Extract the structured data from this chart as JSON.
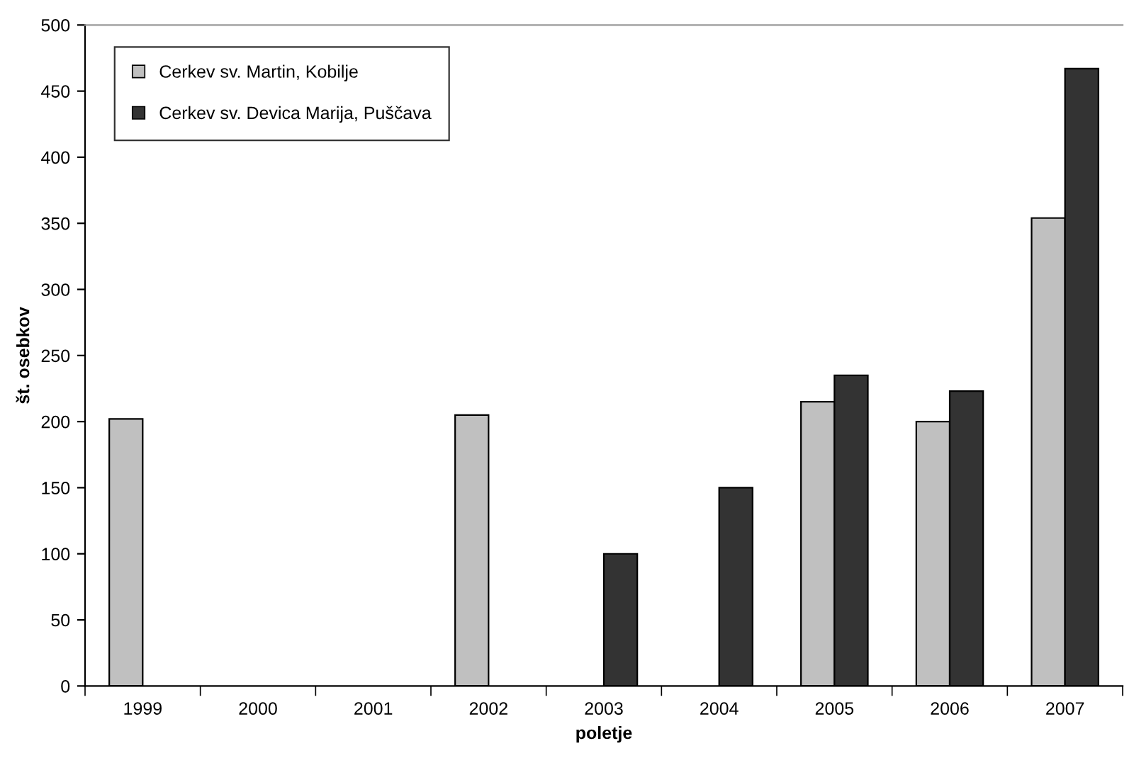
{
  "chart_data": {
    "type": "bar",
    "xlabel": "poletje",
    "ylabel": "št. osebkov",
    "categories": [
      "1999",
      "2000",
      "2001",
      "2002",
      "2003",
      "2004",
      "2005",
      "2006",
      "2007"
    ],
    "series": [
      {
        "name": "Cerkev sv. Martin, Kobilje",
        "color": "#c0c0c0",
        "values": [
          202,
          null,
          null,
          205,
          null,
          null,
          215,
          200,
          354
        ]
      },
      {
        "name": "Cerkev sv. Devica Marija, Puščava",
        "color": "#333333",
        "values": [
          null,
          null,
          null,
          null,
          100,
          150,
          235,
          223,
          467
        ]
      }
    ],
    "ylim": [
      0,
      500
    ],
    "yticks": [
      0,
      50,
      100,
      150,
      200,
      250,
      300,
      350,
      400,
      450,
      500
    ],
    "grid": false,
    "legend": "top left"
  }
}
